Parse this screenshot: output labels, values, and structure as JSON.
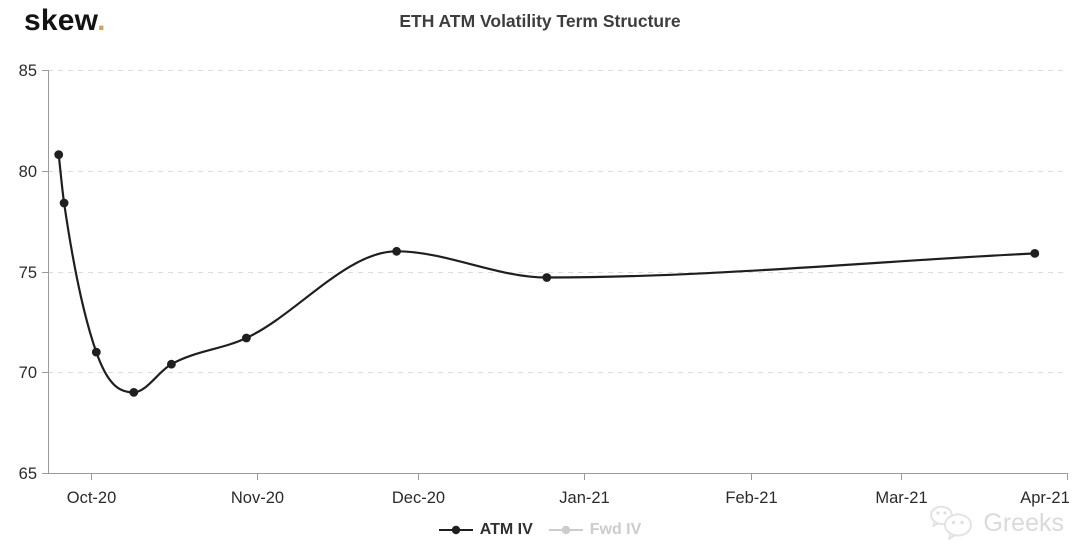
{
  "brand": {
    "name": "skew",
    "dot": "."
  },
  "chart_data": {
    "type": "line",
    "title": "ETH ATM Volatility Term Structure",
    "xlabel": "",
    "ylabel": "",
    "ylim": [
      65,
      85
    ],
    "y_ticks": [
      65,
      70,
      75,
      80,
      85
    ],
    "x_range": [
      "2020-09-23",
      "2021-04-01"
    ],
    "x_ticks": [
      {
        "date": "2020-10-01",
        "label": "Oct-20"
      },
      {
        "date": "2020-11-01",
        "label": "Nov-20"
      },
      {
        "date": "2020-12-01",
        "label": "Dec-20"
      },
      {
        "date": "2021-01-01",
        "label": "Jan-21"
      },
      {
        "date": "2021-02-01",
        "label": "Feb-21"
      },
      {
        "date": "2021-03-01",
        "label": "Mar-21"
      },
      {
        "date": "2021-04-01",
        "label": "Apr-21"
      }
    ],
    "grid": "horizontal-dashed",
    "legend_position": "bottom-center",
    "series": [
      {
        "name": "ATM IV",
        "color": "#1f1f1f",
        "visible": true,
        "marker": "circle",
        "points": [
          {
            "date": "2020-09-25",
            "value": 80.8
          },
          {
            "date": "2020-09-26",
            "value": 78.4
          },
          {
            "date": "2020-10-02",
            "value": 71.0
          },
          {
            "date": "2020-10-09",
            "value": 69.0
          },
          {
            "date": "2020-10-16",
            "value": 70.4
          },
          {
            "date": "2020-10-30",
            "value": 71.7
          },
          {
            "date": "2020-11-27",
            "value": 76.0
          },
          {
            "date": "2020-12-25",
            "value": 74.7
          },
          {
            "date": "2021-03-26",
            "value": 75.9
          }
        ]
      },
      {
        "name": "Fwd IV",
        "color": "#cccccc",
        "visible": false,
        "marker": "circle",
        "points": []
      }
    ]
  },
  "legend": {
    "items": [
      {
        "label": "ATM IV",
        "color": "#1f1f1f",
        "enabled": true
      },
      {
        "label": "Fwd IV",
        "color": "#cccccc",
        "enabled": false
      }
    ]
  },
  "watermark": {
    "text": "Greeks",
    "icon": "wechat-icon"
  },
  "colors": {
    "axis": "#9a9a9a",
    "grid": "#dcdcdc",
    "tick_label": "#2b2b2b",
    "title": "#3d3d3d",
    "brand_dot": "#d9a24b",
    "background": "#ffffff"
  }
}
